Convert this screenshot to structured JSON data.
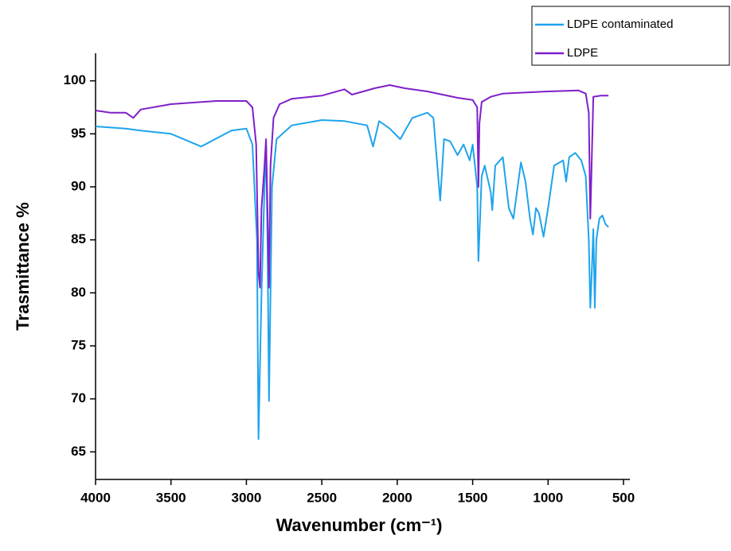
{
  "chart_data": {
    "type": "line",
    "xlabel": "Wavenumber (cm⁻¹)",
    "ylabel": "Trasmittance %",
    "xlim": [
      4000,
      500
    ],
    "xticks": [
      4000,
      3500,
      3000,
      2500,
      2000,
      1500,
      1000,
      500
    ],
    "ylim": [
      62.4,
      102.6
    ],
    "yticks": [
      65,
      70,
      75,
      80,
      85,
      90,
      95,
      100
    ],
    "legend": "upper right",
    "series": [
      {
        "name": "LDPE contaminated",
        "color": "#1ea4ec",
        "x": [
          4000,
          3800,
          3700,
          3500,
          3300,
          3100,
          3000,
          2960,
          2930,
          2920,
          2900,
          2880,
          2870,
          2860,
          2850,
          2830,
          2800,
          2700,
          2500,
          2350,
          2200,
          2160,
          2120,
          2050,
          1980,
          1900,
          1800,
          1760,
          1740,
          1715,
          1690,
          1650,
          1600,
          1560,
          1520,
          1500,
          1470,
          1462,
          1440,
          1420,
          1380,
          1370,
          1350,
          1300,
          1260,
          1230,
          1180,
          1150,
          1120,
          1100,
          1080,
          1060,
          1030,
          1000,
          960,
          900,
          880,
          860,
          820,
          780,
          750,
          730,
          720,
          710,
          700,
          690,
          680,
          660,
          640,
          620,
          600
        ],
        "values": [
          95.7,
          95.5,
          95.3,
          95,
          93.8,
          95.3,
          95.5,
          94,
          85,
          66.2,
          80,
          90,
          94,
          85,
          69.8,
          90,
          94.5,
          95.8,
          96.3,
          96.2,
          95.8,
          93.8,
          96.2,
          95.5,
          94.5,
          96.5,
          97,
          96.5,
          93,
          88.7,
          94.5,
          94.3,
          93,
          94,
          92.5,
          94,
          90,
          83,
          91,
          92,
          89.5,
          87.8,
          92,
          92.8,
          88,
          87,
          92.3,
          90.5,
          87,
          85.5,
          88,
          87.5,
          85.3,
          88,
          92,
          92.5,
          90.5,
          92.8,
          93.2,
          92.5,
          91,
          85,
          78.6,
          82,
          86,
          78.6,
          85,
          87,
          87.3,
          86.5,
          86.2
        ]
      },
      {
        "name": "LDPE",
        "color": "#7f1fc9",
        "x": [
          4000,
          3900,
          3800,
          3750,
          3700,
          3500,
          3200,
          3000,
          2960,
          2935,
          2920,
          2910,
          2900,
          2880,
          2870,
          2860,
          2850,
          2840,
          2820,
          2780,
          2700,
          2500,
          2350,
          2300,
          2150,
          2050,
          1950,
          1800,
          1600,
          1500,
          1470,
          1462,
          1455,
          1440,
          1380,
          1300,
          1000,
          800,
          750,
          730,
          720,
          715,
          700,
          650,
          600
        ],
        "values": [
          97.2,
          97,
          97,
          96.5,
          97.3,
          97.8,
          98.1,
          98.1,
          97.5,
          94,
          82,
          80.5,
          88,
          92,
          94.5,
          88,
          80.5,
          92,
          96.5,
          97.8,
          98.3,
          98.6,
          99.2,
          98.7,
          99.3,
          99.6,
          99.3,
          99,
          98.4,
          98.2,
          97.5,
          90,
          96,
          98,
          98.5,
          98.8,
          99,
          99.1,
          98.8,
          97,
          87,
          90,
          98.5,
          98.6,
          98.6
        ]
      }
    ]
  }
}
